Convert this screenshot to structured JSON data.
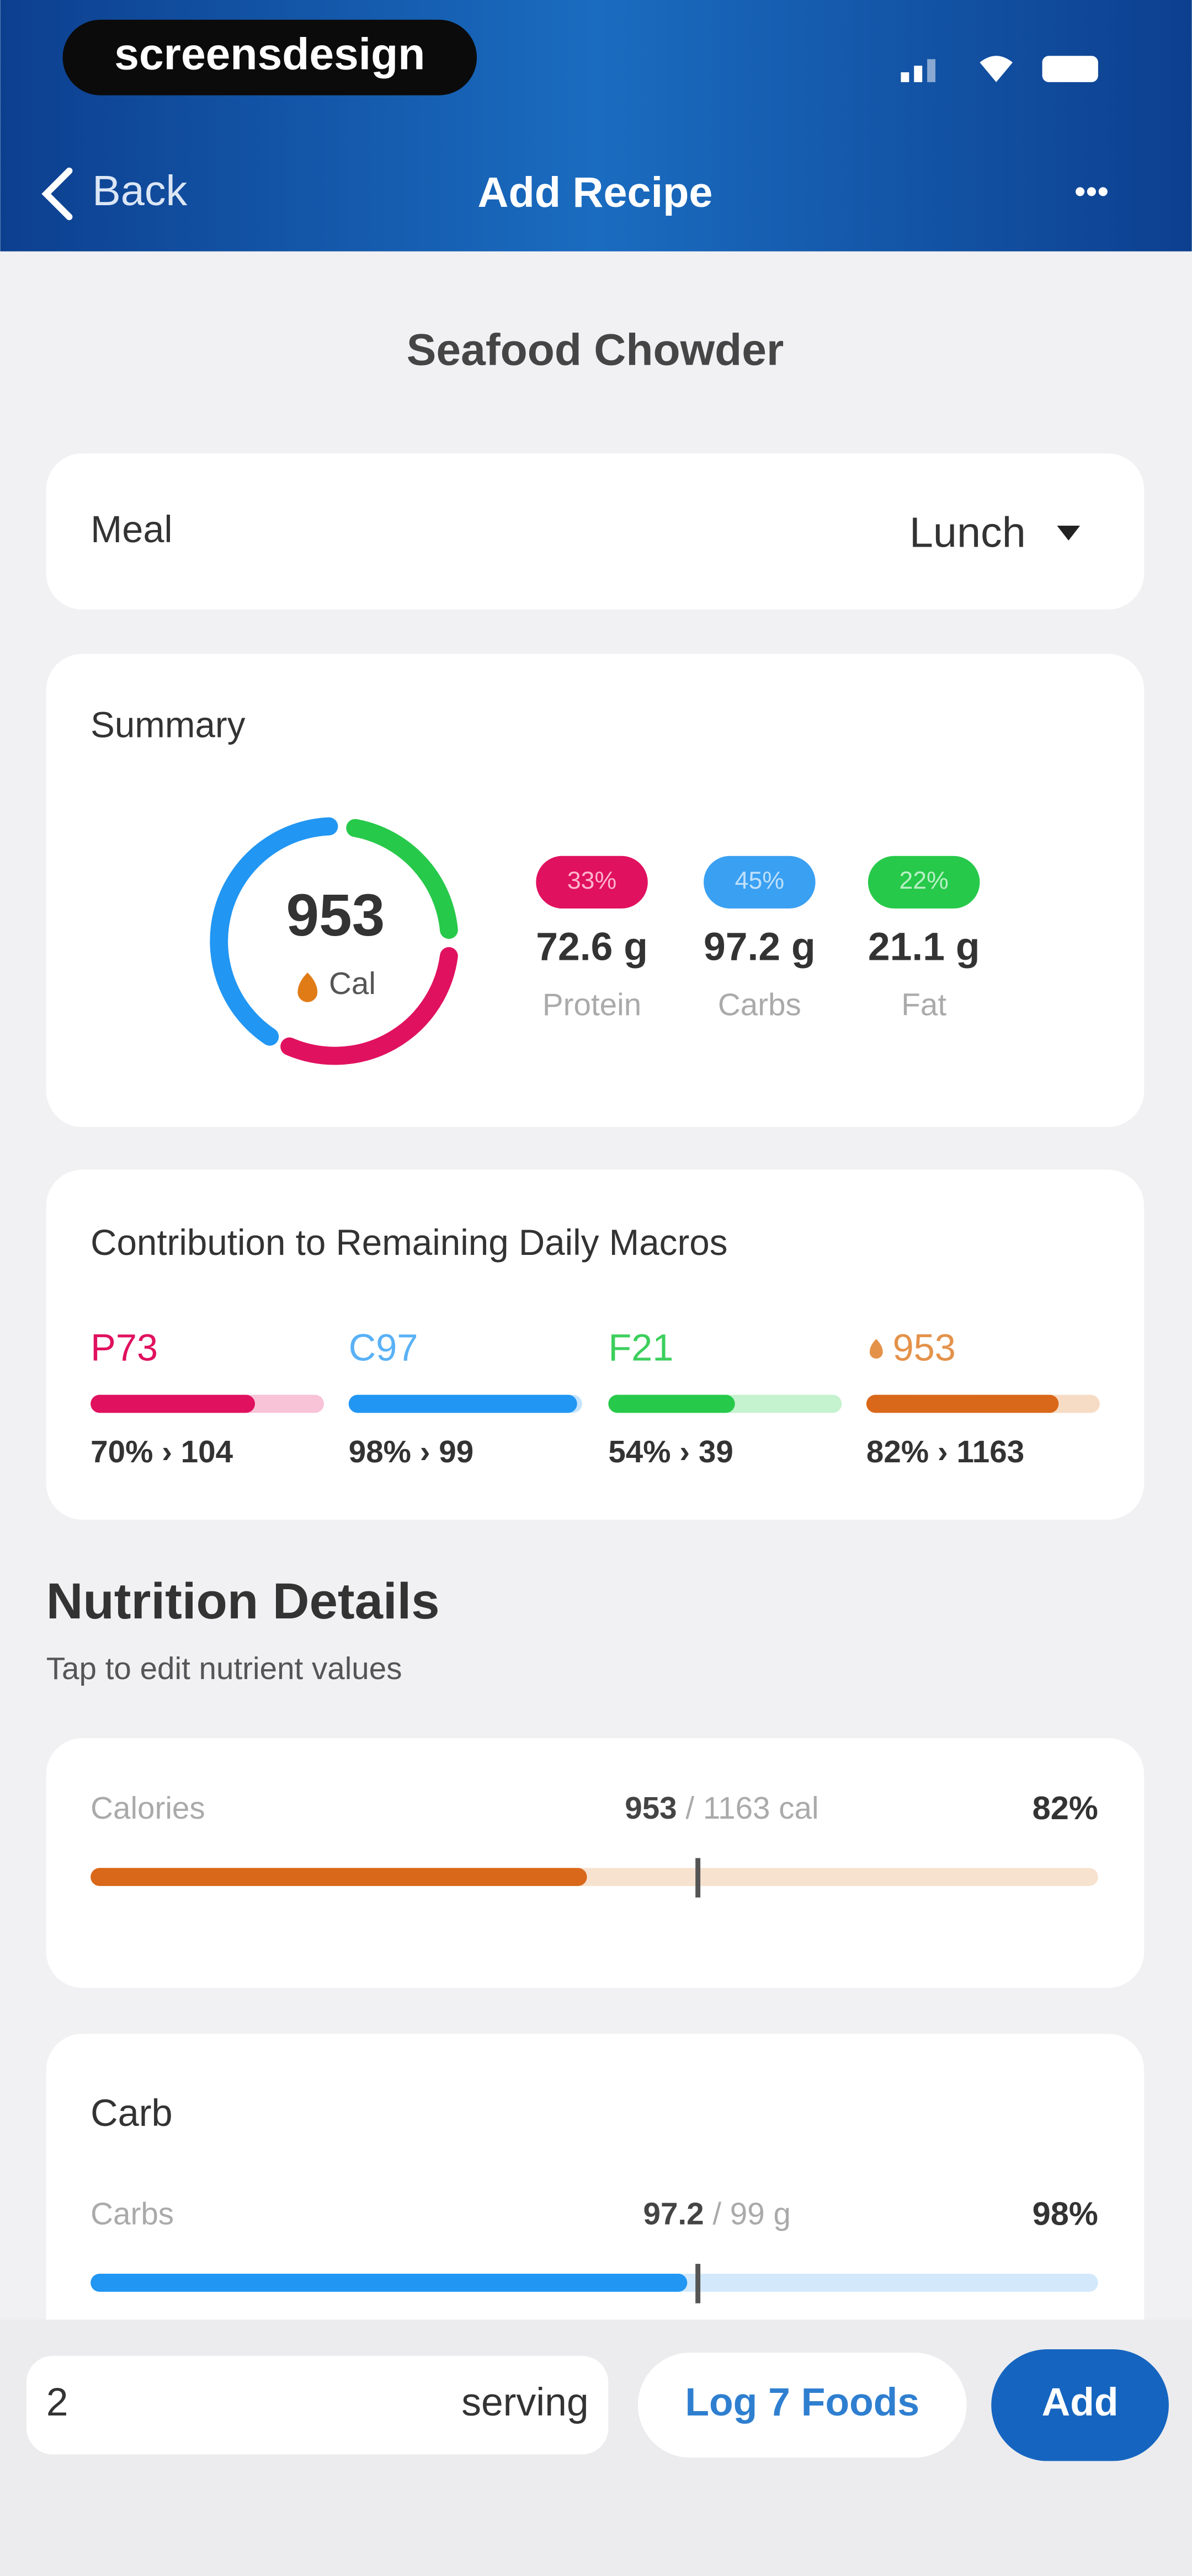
{
  "status_bar": {
    "brand": "screensdesign"
  },
  "nav": {
    "back": "Back",
    "title": "Add Recipe",
    "more": "•••"
  },
  "recipe_name": "Seafood Chowder",
  "meal": {
    "label": "Meal",
    "value": "Lunch"
  },
  "summary": {
    "title": "Summary",
    "calories": "953",
    "calories_unit": "Cal",
    "macros": [
      {
        "percent": "33%",
        "amount": "72.6 g",
        "name": "Protein"
      },
      {
        "percent": "45%",
        "amount": "97.2 g",
        "name": "Carbs"
      },
      {
        "percent": "22%",
        "amount": "21.1 g",
        "name": "Fat"
      }
    ]
  },
  "contribution": {
    "title": "Contribution to Remaining Daily Macros",
    "items": [
      {
        "label": "P73",
        "detail": "70% › 104"
      },
      {
        "label": "C97",
        "detail": "98% › 99"
      },
      {
        "label": "F21",
        "detail": "54% › 39"
      },
      {
        "label": "953",
        "detail": "82% › 1163"
      }
    ]
  },
  "nutrition": {
    "title": "Nutrition Details",
    "subtitle": "Tap to edit nutrient values",
    "calories": {
      "label": "Calories",
      "amount": "953",
      "target": "/ 1163 cal",
      "percent": "82%"
    },
    "carb": {
      "heading": "Carb",
      "label": "Carbs",
      "amount": "97.2",
      "target": "/ 99 g",
      "percent": "98%"
    }
  },
  "footer": {
    "servings": "2",
    "unit": "serving",
    "log": "Log 7 Foods",
    "add": "Add"
  }
}
